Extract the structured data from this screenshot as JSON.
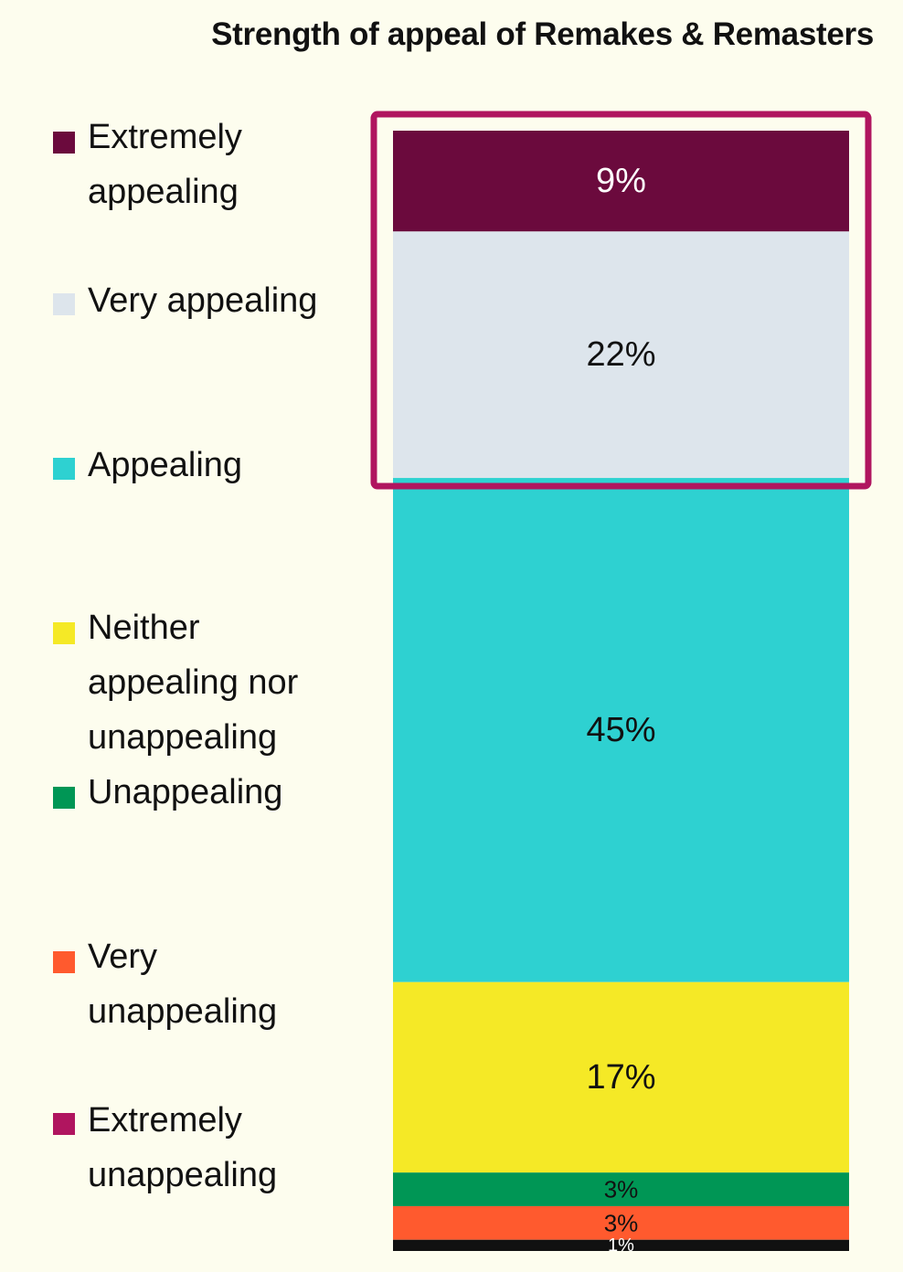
{
  "chart_data": {
    "type": "bar",
    "stacked": true,
    "orientation": "vertical",
    "title": "Strength of appeal of Remakes & Remasters",
    "xlabel": "",
    "ylabel": "",
    "grid": false,
    "legend_position": "left",
    "highlight": {
      "segments": [
        "Extremely appealing",
        "Very appealing"
      ],
      "color": "#b0155f"
    },
    "series": [
      {
        "name": "Extremely appealing",
        "value": 9,
        "label": "9%",
        "color": "#6b0a3d",
        "label_color": "#ffffff"
      },
      {
        "name": "Very appealing",
        "value": 22,
        "label": "22%",
        "color": "#dde5ec",
        "label_color": "#111111"
      },
      {
        "name": "Appealing",
        "value": 45,
        "label": "45%",
        "color": "#2ed1d1",
        "label_color": "#111111"
      },
      {
        "name": "Neither appealing nor unappealing",
        "value": 17,
        "label": "17%",
        "color": "#f5e926",
        "label_color": "#111111"
      },
      {
        "name": "Unappealing",
        "value": 3,
        "label": "3%",
        "color": "#009655",
        "label_color": "#111111"
      },
      {
        "name": "Very unappealing",
        "value": 3,
        "label": "3%",
        "color": "#ff5a2e",
        "label_color": "#111111"
      },
      {
        "name": "Extremely unappealing",
        "value": 1,
        "label": "1%",
        "color": "#111111",
        "label_color": "#ffffff"
      }
    ]
  },
  "legend": [
    {
      "lines": [
        "Extremely",
        "appealing"
      ],
      "color": "#6b0a3d",
      "icon": "square-swatch"
    },
    {
      "lines": [
        "Very appealing"
      ],
      "color": "#dde5ec",
      "icon": "square-swatch"
    },
    {
      "lines": [
        "Appealing"
      ],
      "color": "#2ed1d1",
      "icon": "square-swatch"
    },
    {
      "lines": [
        "Neither",
        "appealing nor",
        "unappealing"
      ],
      "color": "#f5e926",
      "icon": "square-swatch"
    },
    {
      "lines": [
        "Unappealing"
      ],
      "color": "#009655",
      "icon": "square-swatch"
    },
    {
      "lines": [
        "Very",
        "unappealing"
      ],
      "color": "#ff5a2e",
      "icon": "square-swatch"
    },
    {
      "lines": [
        "Extremely",
        "unappealing"
      ],
      "color": "#b0155f",
      "icon": "square-swatch"
    }
  ]
}
